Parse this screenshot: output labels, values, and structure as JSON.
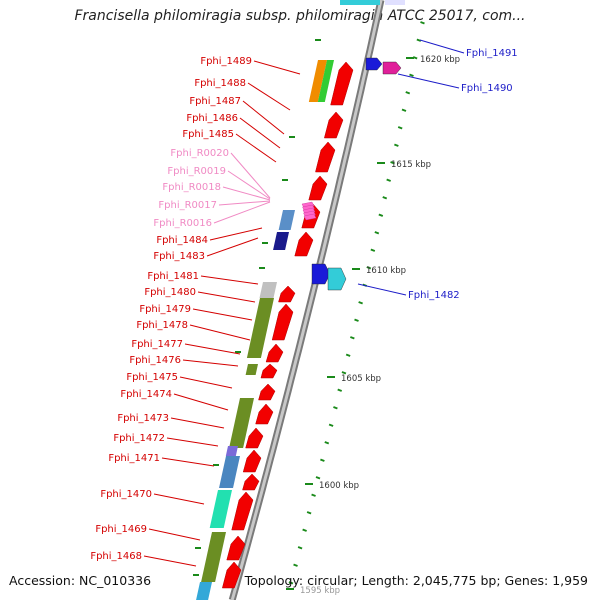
{
  "title": "Francisella philomiragia subsp. philomiragia ATCC 25017, com...",
  "footer": {
    "accession": "Accession: NC_010336",
    "summary": "Topology: circular; Length: 2,045,775 bp; Genes: 1,959"
  },
  "colors": {
    "cds": "#f20000",
    "rna": "#ff66cc",
    "plus_label": "#1d1dc8",
    "minus_label": "#d40000",
    "rna_label": "#f08ac4",
    "tick": "#1a8a1a",
    "backbone": "#9a9a9a"
  },
  "scale_labels": [
    "1620 kbp",
    "1615 kbp",
    "1610 kbp",
    "1605 kbp",
    "1600 kbp",
    "1595 kbp"
  ],
  "plus_genes": [
    "Fphi_1491",
    "Fphi_1490",
    "Fphi_1482"
  ],
  "minus_genes": [
    "Fphi_1489",
    "Fphi_1488",
    "Fphi_1487",
    "Fphi_1486",
    "Fphi_1485",
    "Fphi_1484",
    "Fphi_1483",
    "Fphi_1481",
    "Fphi_1480",
    "Fphi_1479",
    "Fphi_1478",
    "Fphi_1477",
    "Fphi_1476",
    "Fphi_1475",
    "Fphi_1474",
    "Fphi_1473",
    "Fphi_1472",
    "Fphi_1471",
    "Fphi_1470",
    "Fphi_1469",
    "Fphi_1468"
  ],
  "rna_genes": [
    "Fphi_R0020",
    "Fphi_R0019",
    "Fphi_R0018",
    "Fphi_R0017",
    "Fphi_R0016"
  ]
}
